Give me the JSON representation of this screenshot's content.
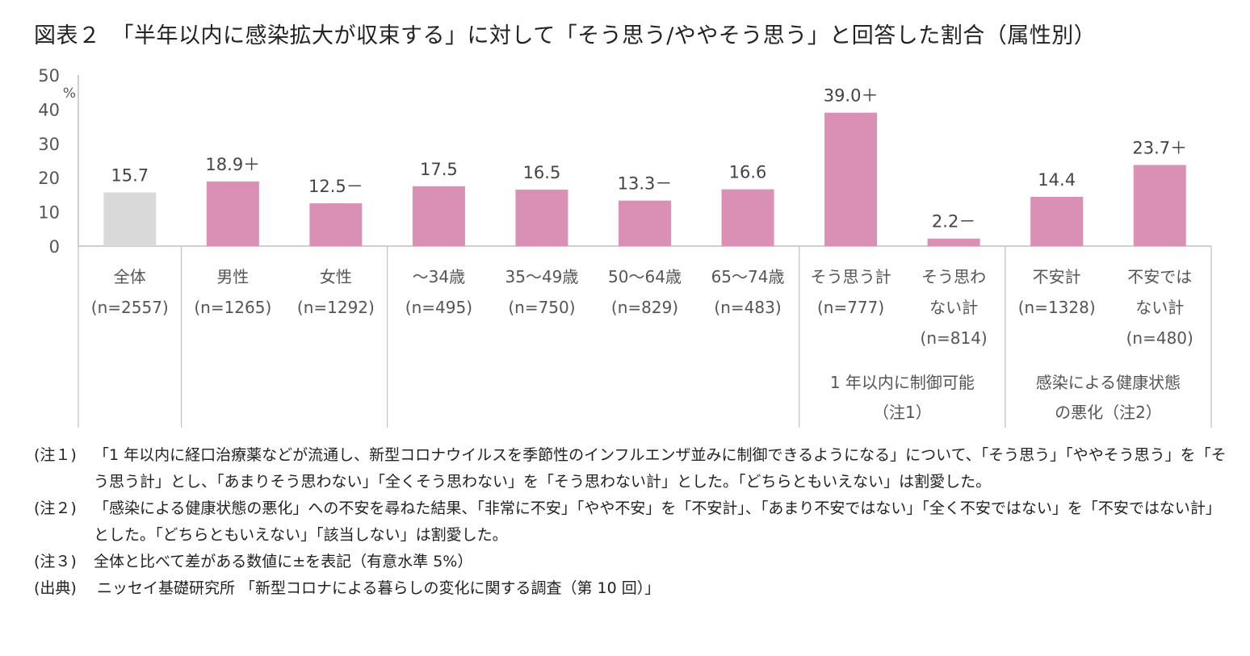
{
  "title": "図表２　「半年以内に感染拡大が収束する」に対して「そう思う/ややそう思う」と回答した割合（属性別）",
  "colors": {
    "total_bar": "#d9d9d9",
    "bar": "#da8fb5",
    "axis": "#bfbfbf",
    "text": "#444444"
  },
  "chart_data": {
    "type": "bar",
    "title": "図表２　「半年以内に感染拡大が収束する」に対して「そう思う/ややそう思う」と回答した割合（属性別）",
    "ylabel": "%",
    "ylim": [
      0,
      50
    ],
    "yticks": [
      "0",
      "10",
      "20",
      "30",
      "40",
      "50"
    ],
    "grid": false,
    "legend": "none",
    "categories": [
      {
        "lines": [
          "全体",
          "(n=2557)"
        ],
        "value": 15.7,
        "label": "15.7",
        "highlight": false
      },
      {
        "lines": [
          "男性",
          "(n=1265)"
        ],
        "value": 18.9,
        "label": "18.9＋",
        "highlight": true
      },
      {
        "lines": [
          "女性",
          "(n=1292)"
        ],
        "value": 12.5,
        "label": "12.5－",
        "highlight": true
      },
      {
        "lines": [
          "～34歳",
          "(n=495)"
        ],
        "value": 17.5,
        "label": "17.5",
        "highlight": true
      },
      {
        "lines": [
          "35～49歳",
          "(n=750)"
        ],
        "value": 16.5,
        "label": "16.5",
        "highlight": true
      },
      {
        "lines": [
          "50～64歳",
          "(n=829)"
        ],
        "value": 13.3,
        "label": "13.3－",
        "highlight": true
      },
      {
        "lines": [
          "65～74歳",
          "(n=483)"
        ],
        "value": 16.6,
        "label": "16.6",
        "highlight": true
      },
      {
        "lines": [
          "そう思う計",
          "(n=777)"
        ],
        "value": 39.0,
        "label": "39.0＋",
        "highlight": true
      },
      {
        "lines": [
          "そう思わ",
          "ない計",
          "(n=814)"
        ],
        "value": 2.2,
        "label": "2.2－",
        "highlight": true
      },
      {
        "lines": [
          "不安計",
          "(n=1328)"
        ],
        "value": 14.4,
        "label": "14.4",
        "highlight": true
      },
      {
        "lines": [
          "不安では",
          "ない計",
          "(n=480)"
        ],
        "value": 23.7,
        "label": "23.7＋",
        "highlight": true
      }
    ],
    "group_labels": [
      {
        "lines": [
          "1 年以内に制御可能",
          "（注1）"
        ]
      },
      {
        "lines": [
          "感染による健康状態",
          "の悪化（注2）"
        ]
      }
    ]
  },
  "notes": [
    {
      "tag": "(注１)",
      "text": "「1 年以内に経口治療薬などが流通し、新型コロナウイルスを季節性のインフルエンザ並みに制御できるようになる」について、「そう思う」「ややそう思う」を「そう思う計」とし、「あまりそう思わない」「全くそう思わない」を「そう思わない計」とした。「どちらともいえない」は割愛した。"
    },
    {
      "tag": "(注２)",
      "text": "「感染による健康状態の悪化」への不安を尋ねた結果、「非常に不安」「やや不安」を「不安計」、「あまり不安ではない」「全く不安ではない」を「不安ではない計」とした。「どちらともいえない」「該当しない」は割愛した。"
    },
    {
      "tag": "(注３)",
      "text": "全体と比べて差がある数値に±を表記（有意水準 5%）"
    },
    {
      "tag": "(出典)",
      "text": "ニッセイ基礎研究所 「新型コロナによる暮らしの変化に関する調査（第 10 回）」"
    }
  ]
}
